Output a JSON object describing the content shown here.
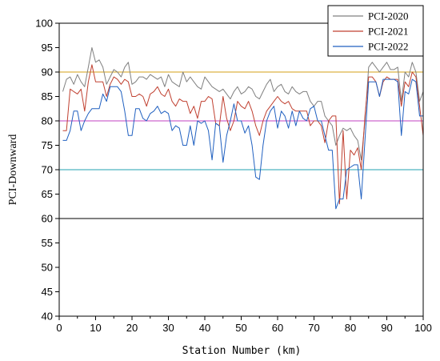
{
  "chart_data": {
    "type": "line",
    "xlabel": "Station Number (km)",
    "ylabel": "PCI-Downward",
    "xlim": [
      0,
      100
    ],
    "ylim": [
      40,
      100
    ],
    "xticks": [
      0,
      10,
      20,
      30,
      40,
      50,
      60,
      70,
      80,
      90,
      100
    ],
    "yticks": [
      40,
      45,
      50,
      55,
      60,
      65,
      70,
      75,
      80,
      85,
      90,
      95,
      100
    ],
    "grid": false,
    "legend_position": "top-right",
    "reference_lines": [
      {
        "y": 90,
        "color": "#d4a017"
      },
      {
        "y": 80,
        "color": "#c040c0"
      },
      {
        "y": 70,
        "color": "#20a0b0"
      },
      {
        "y": 60,
        "color": "#000000"
      }
    ],
    "x": [
      1,
      2,
      3,
      4,
      5,
      6,
      7,
      8,
      9,
      10,
      11,
      12,
      13,
      14,
      15,
      16,
      17,
      18,
      19,
      20,
      21,
      22,
      23,
      24,
      25,
      26,
      27,
      28,
      29,
      30,
      31,
      32,
      33,
      34,
      35,
      36,
      37,
      38,
      39,
      40,
      41,
      42,
      43,
      44,
      45,
      46,
      47,
      48,
      49,
      50,
      51,
      52,
      53,
      54,
      55,
      56,
      57,
      58,
      59,
      60,
      61,
      62,
      63,
      64,
      65,
      66,
      67,
      68,
      69,
      70,
      71,
      72,
      73,
      74,
      75,
      76,
      77,
      78,
      79,
      80,
      81,
      82,
      83,
      84,
      85,
      86,
      87,
      88,
      89,
      90,
      91,
      92,
      93,
      94,
      95,
      96,
      97,
      98,
      99,
      100
    ],
    "series": [
      {
        "name": "PCI-2020",
        "color": "#808080",
        "values": [
          86,
          88.5,
          89,
          87.5,
          89.5,
          88,
          87,
          91,
          95,
          92,
          92.5,
          91,
          87.5,
          89,
          90.5,
          90,
          89,
          91,
          92,
          87.5,
          88,
          89,
          89,
          88.5,
          89.5,
          89,
          88.5,
          89,
          87,
          89.5,
          88,
          87.5,
          87,
          90,
          88,
          89,
          88,
          87,
          86.5,
          89,
          88,
          87,
          86.5,
          86,
          86.5,
          85.5,
          84.5,
          86,
          87,
          85.5,
          86,
          87,
          86.5,
          85,
          84.5,
          86,
          87.5,
          88.5,
          86,
          87,
          87.5,
          86,
          85.5,
          87,
          86,
          85.5,
          86,
          86,
          84,
          83,
          84,
          84,
          81,
          80,
          79,
          75,
          77,
          78.5,
          78,
          78.5,
          77,
          76,
          72,
          80,
          91,
          92,
          91,
          90,
          91,
          92,
          90.5,
          90.5,
          91,
          84,
          90,
          89,
          92,
          90,
          84,
          86
        ]
      },
      {
        "name": "PCI-2021",
        "color": "#c04030",
        "values": [
          78,
          78,
          86.5,
          86,
          85.5,
          86.5,
          82,
          88,
          91.5,
          88,
          88,
          88,
          85,
          87.5,
          89,
          88.5,
          87.5,
          88.5,
          88,
          85,
          85,
          85.5,
          85,
          83,
          85.5,
          86,
          87,
          85.5,
          85,
          86.5,
          84,
          83,
          84.5,
          84,
          84,
          81.5,
          83,
          80.5,
          84,
          84,
          85,
          84.5,
          79.5,
          79,
          85,
          80.5,
          78,
          80,
          84,
          83,
          82.5,
          84,
          82,
          79,
          77,
          80,
          82,
          83,
          84,
          85,
          84,
          83.5,
          84,
          82.5,
          82,
          82,
          82,
          82,
          79,
          80,
          80,
          79,
          75.5,
          80,
          81,
          81,
          63,
          78,
          64,
          74,
          73,
          74.5,
          70,
          81,
          89,
          89,
          88,
          85,
          88,
          89,
          88.5,
          88.5,
          88.5,
          83,
          88,
          87,
          90,
          89,
          83,
          77
        ]
      },
      {
        "name": "PCI-2022",
        "color": "#2060c0",
        "values": [
          76,
          76,
          78,
          82,
          82,
          78,
          80,
          81.5,
          82.5,
          82.5,
          82.5,
          85.5,
          84,
          87,
          87,
          87,
          86,
          82,
          77,
          77,
          82.5,
          82.5,
          80.5,
          80,
          81.5,
          82,
          83,
          81.5,
          82,
          81.5,
          78,
          79,
          78.5,
          75,
          75,
          79,
          75,
          80,
          79.5,
          80,
          78,
          72,
          79.5,
          79,
          71.5,
          77,
          80,
          83.5,
          80,
          80,
          77.5,
          79,
          75,
          68.5,
          68,
          75,
          80,
          82,
          83,
          78.5,
          82,
          81,
          78.5,
          82,
          79,
          82,
          80.5,
          80,
          82.5,
          83,
          80,
          80,
          77,
          74,
          74,
          62,
          64,
          64,
          70,
          70.5,
          71,
          71,
          64,
          76,
          88,
          88,
          88,
          85,
          88.5,
          88.5,
          88.5,
          88.5,
          88,
          77,
          86,
          85.5,
          88.5,
          88,
          81,
          81
        ]
      }
    ]
  }
}
